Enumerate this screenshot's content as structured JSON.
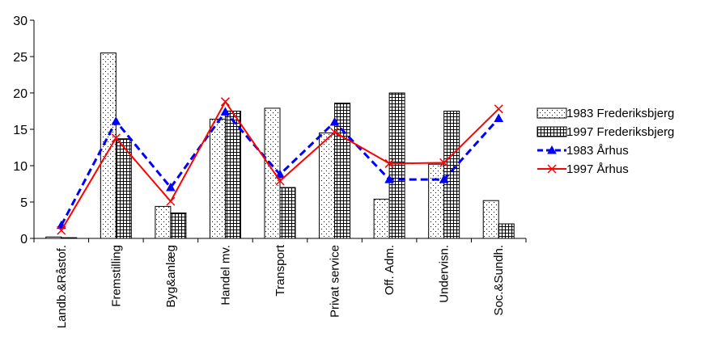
{
  "chart_data": {
    "type": "bar",
    "categories": [
      "Landb.&Råstof.",
      "Fremstilling",
      "Byg&anlæg",
      "Handel mv.",
      "Transport",
      "Privat service",
      "Off. Adm.",
      "Undervisn.",
      "Soc.&Sundh."
    ],
    "ylim": [
      0,
      30
    ],
    "yticks": [
      "0",
      "5",
      "10",
      "15",
      "20",
      "25",
      "30"
    ],
    "grid": false,
    "legend_position": "right",
    "series": [
      {
        "name": "1983 Frederiksbjerg",
        "type": "bar",
        "pattern": "dotted",
        "values": [
          0.2,
          25.5,
          4.4,
          16.4,
          17.9,
          14.5,
          5.4,
          10.2,
          5.2
        ]
      },
      {
        "name": "1997 Frederiksbjerg",
        "type": "bar",
        "pattern": "grid",
        "values": [
          0.1,
          13.7,
          3.5,
          17.5,
          7.0,
          18.6,
          20.0,
          17.5,
          2.0
        ]
      },
      {
        "name": "1983 Århus",
        "type": "line",
        "color": "#0000ff",
        "dash": "dashed",
        "marker": "triangle",
        "values": [
          1.8,
          16.1,
          7.0,
          17.4,
          8.8,
          16.0,
          8.1,
          8.1,
          16.5
        ]
      },
      {
        "name": "1997 Århus",
        "type": "line",
        "color": "#ff0000",
        "dash": "solid",
        "marker": "x",
        "values": [
          1.1,
          13.8,
          5.1,
          18.8,
          7.9,
          14.6,
          10.3,
          10.4,
          17.8
        ]
      }
    ]
  }
}
